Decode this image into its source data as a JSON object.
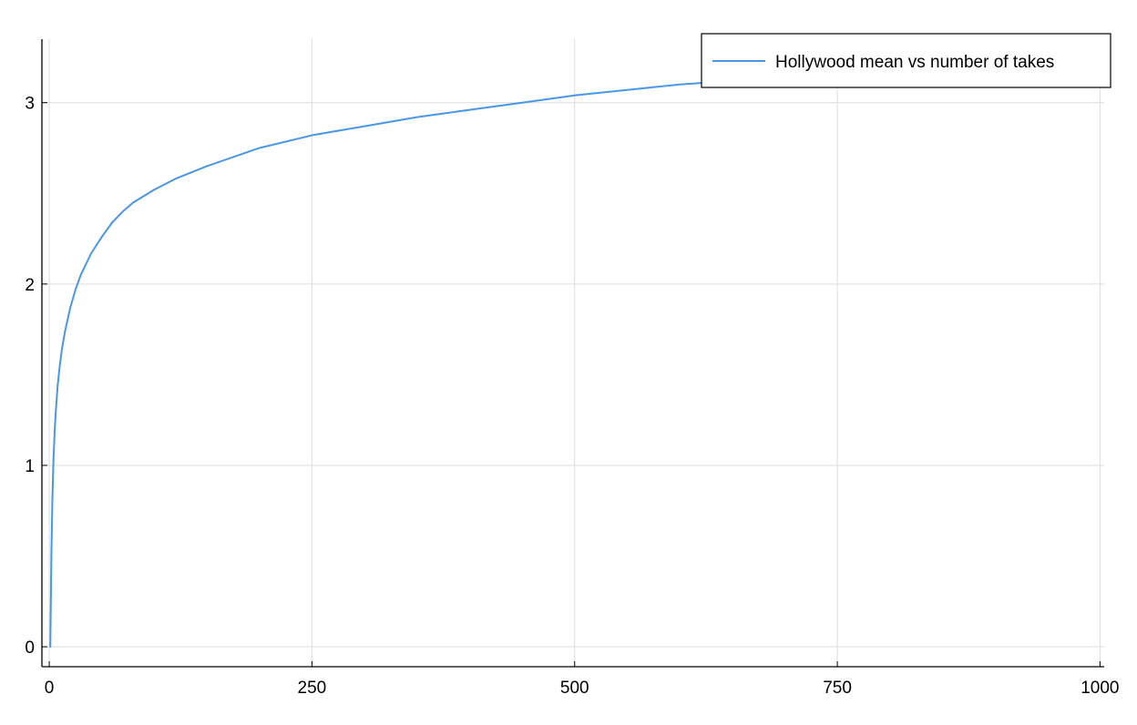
{
  "chart_data": {
    "type": "line",
    "title": "",
    "xlabel": "",
    "ylabel": "",
    "xlim": [
      -7,
      1004
    ],
    "ylim": [
      -0.11,
      3.35
    ],
    "x_ticks": [
      0,
      250,
      500,
      750,
      1000
    ],
    "x_tick_labels": [
      "0",
      "250",
      "500",
      "750",
      "1000"
    ],
    "y_ticks": [
      0,
      1,
      2,
      3
    ],
    "y_tick_labels": [
      "0",
      "1",
      "2",
      "3"
    ],
    "grid": true,
    "legend_position": "top-right",
    "colors": {
      "series": "#4a97e3",
      "grid": "#dcdcdc",
      "axis": "#000000"
    },
    "series": [
      {
        "name": "Hollywood mean vs number of takes",
        "x": [
          1,
          2,
          3,
          4,
          5,
          6,
          8,
          10,
          12,
          15,
          20,
          25,
          30,
          40,
          50,
          60,
          70,
          80,
          100,
          120,
          150,
          175,
          200,
          250,
          300,
          350,
          400,
          450,
          500,
          550,
          600,
          650,
          700,
          750,
          800,
          850,
          900,
          950,
          1000
        ],
        "values": [
          0.0,
          0.5,
          0.82,
          1.03,
          1.17,
          1.28,
          1.44,
          1.55,
          1.64,
          1.74,
          1.87,
          1.97,
          2.05,
          2.17,
          2.26,
          2.34,
          2.4,
          2.45,
          2.52,
          2.58,
          2.65,
          2.7,
          2.75,
          2.82,
          2.87,
          2.92,
          2.96,
          3.0,
          3.04,
          3.07,
          3.1,
          3.12,
          3.14,
          3.16,
          3.18,
          3.2,
          3.21,
          3.23,
          3.24
        ]
      }
    ]
  }
}
